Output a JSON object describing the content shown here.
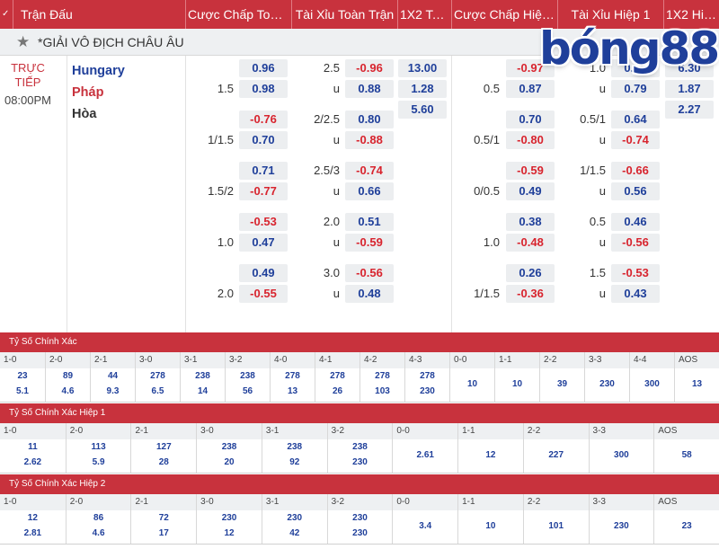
{
  "header": {
    "toggle": "✓",
    "match_col": "Trận Đấu",
    "ah_ft": "Cược Chấp Toàn ...",
    "ou_ft": "Tài Xỉu Toàn Trận",
    "x12_ft": "1X2 Toà...",
    "ah_h1": "Cược Chấp Hiệp 1",
    "ou_h1": "Tài Xỉu Hiệp 1",
    "x12_h1": "1X2 Hiệ..."
  },
  "league": {
    "name": "*GIẢI VÔ ĐỊCH CHÂU ÂU",
    "star_icon": "star-icon"
  },
  "logo": {
    "text": "bóng88"
  },
  "match": {
    "status": "TRỰC TIẾP",
    "time": "08:00PM",
    "home": "Hungary",
    "away": "Pháp",
    "draw": "Hòa"
  },
  "market_lines": [
    {
      "ah_ft": {
        "handicap": "1.5",
        "home": "0.96",
        "away": "0.98"
      },
      "ou_ft": {
        "line": "2.5",
        "over": "-0.96",
        "under_label": "u",
        "under": "0.88"
      },
      "x12_ft": {
        "home": "13.00",
        "away": "1.28",
        "draw": "5.60"
      },
      "ah_h1": {
        "handicap": "0.5",
        "home": "-0.97",
        "away": "0.87"
      },
      "ou_h1": {
        "line": "1.0",
        "over": "0.93",
        "under_label": "u",
        "under": "0.79"
      },
      "x12_h1": {
        "home": "6.30",
        "away": "1.87",
        "draw": "2.27"
      }
    },
    {
      "ah_ft": {
        "handicap": "1/1.5",
        "home": "-0.76",
        "away": "0.70"
      },
      "ou_ft": {
        "line": "2/2.5",
        "over": "0.80",
        "under_label": "u",
        "under": "-0.88"
      },
      "ah_h1": {
        "handicap": "0.5/1",
        "home": "0.70",
        "away": "-0.80"
      },
      "ou_h1": {
        "line": "0.5/1",
        "over": "0.64",
        "under_label": "u",
        "under": "-0.74"
      }
    },
    {
      "ah_ft": {
        "handicap": "1.5/2",
        "home": "0.71",
        "away": "-0.77"
      },
      "ou_ft": {
        "line": "2.5/3",
        "over": "-0.74",
        "under_label": "u",
        "under": "0.66"
      },
      "ah_h1": {
        "handicap": "0/0.5",
        "home": "-0.59",
        "away": "0.49"
      },
      "ou_h1": {
        "line": "1/1.5",
        "over": "-0.66",
        "under_label": "u",
        "under": "0.56"
      }
    },
    {
      "ah_ft": {
        "handicap": "1.0",
        "home": "-0.53",
        "away": "0.47"
      },
      "ou_ft": {
        "line": "2.0",
        "over": "0.51",
        "under_label": "u",
        "under": "-0.59"
      },
      "ah_h1": {
        "handicap": "1.0",
        "home": "0.38",
        "away": "-0.48"
      },
      "ou_h1": {
        "line": "0.5",
        "over": "0.46",
        "under_label": "u",
        "under": "-0.56"
      }
    },
    {
      "ah_ft": {
        "handicap": "2.0",
        "home": "0.49",
        "away": "-0.55"
      },
      "ou_ft": {
        "line": "3.0",
        "over": "-0.56",
        "under_label": "u",
        "under": "0.48"
      },
      "ah_h1": {
        "handicap": "1/1.5",
        "home": "0.26",
        "away": "-0.36"
      },
      "ou_h1": {
        "line": "1.5",
        "over": "-0.53",
        "under_label": "u",
        "under": "0.43"
      }
    }
  ],
  "correct_score": [
    {
      "title": "Tỷ Số Chính Xác",
      "cells": [
        {
          "score": "1-0",
          "a": "23",
          "b": "5.1"
        },
        {
          "score": "2-0",
          "a": "89",
          "b": "4.6"
        },
        {
          "score": "2-1",
          "a": "44",
          "b": "9.3"
        },
        {
          "score": "3-0",
          "a": "278",
          "b": "6.5"
        },
        {
          "score": "3-1",
          "a": "238",
          "b": "14"
        },
        {
          "score": "3-2",
          "a": "238",
          "b": "56"
        },
        {
          "score": "4-0",
          "a": "278",
          "b": "13"
        },
        {
          "score": "4-1",
          "a": "278",
          "b": "26"
        },
        {
          "score": "4-2",
          "a": "278",
          "b": "103"
        },
        {
          "score": "4-3",
          "a": "278",
          "b": "230"
        },
        {
          "score": "0-0",
          "single": "10"
        },
        {
          "score": "1-1",
          "single": "10"
        },
        {
          "score": "2-2",
          "single": "39"
        },
        {
          "score": "3-3",
          "single": "230"
        },
        {
          "score": "4-4",
          "single": "300"
        },
        {
          "score": "AOS",
          "single": "13"
        }
      ]
    },
    {
      "title": "Tỷ Số Chính Xác Hiệp 1",
      "cells": [
        {
          "score": "1-0",
          "a": "11",
          "b": "2.62"
        },
        {
          "score": "2-0",
          "a": "113",
          "b": "5.9"
        },
        {
          "score": "2-1",
          "a": "127",
          "b": "28"
        },
        {
          "score": "3-0",
          "a": "238",
          "b": "20"
        },
        {
          "score": "3-1",
          "a": "238",
          "b": "92"
        },
        {
          "score": "3-2",
          "a": "238",
          "b": "230"
        },
        {
          "score": "0-0",
          "single": "2.61"
        },
        {
          "score": "1-1",
          "single": "12"
        },
        {
          "score": "2-2",
          "single": "227"
        },
        {
          "score": "3-3",
          "single": "300"
        },
        {
          "score": "AOS",
          "single": "58"
        }
      ]
    },
    {
      "title": "Tỷ Số Chính Xác Hiệp 2",
      "cells": [
        {
          "score": "1-0",
          "a": "12",
          "b": "2.81"
        },
        {
          "score": "2-0",
          "a": "86",
          "b": "4.6"
        },
        {
          "score": "2-1",
          "a": "72",
          "b": "17"
        },
        {
          "score": "3-0",
          "a": "230",
          "b": "12"
        },
        {
          "score": "3-1",
          "a": "230",
          "b": "42"
        },
        {
          "score": "3-2",
          "a": "230",
          "b": "230"
        },
        {
          "score": "0-0",
          "single": "3.4"
        },
        {
          "score": "1-1",
          "single": "10"
        },
        {
          "score": "2-2",
          "single": "101"
        },
        {
          "score": "3-3",
          "single": "230"
        },
        {
          "score": "AOS",
          "single": "23"
        }
      ]
    }
  ],
  "colors": {
    "brand_red": "#c8323d",
    "positive_odds": "#1f3f9a",
    "negative_odds": "#d8242e"
  }
}
